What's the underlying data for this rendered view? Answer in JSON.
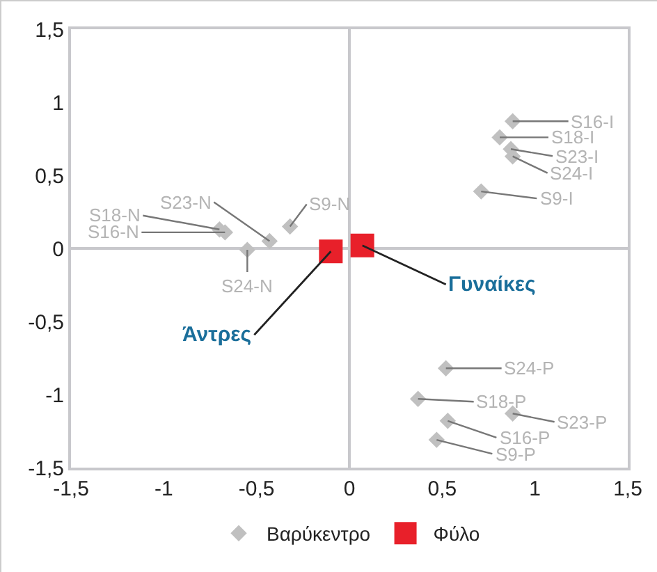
{
  "chart_data": {
    "type": "scatter",
    "xlim": [
      -1.5,
      1.5
    ],
    "xticks": [
      {
        "value": -1.5,
        "label": "-1,5"
      },
      -1,
      {
        "value": -0.5,
        "label": "-0,5"
      },
      0,
      {
        "value": 0.5,
        "label": "0,5"
      },
      1,
      {
        "value": 1.5,
        "label": "1,5"
      }
    ],
    "ylim": [
      -1.5,
      1.5
    ],
    "yticks": [
      {
        "value": -1.5,
        "label": "-1,5"
      },
      -1,
      {
        "value": -0.5,
        "label": "-0,5"
      },
      0,
      {
        "value": 0.5,
        "label": "0,5"
      },
      1,
      {
        "value": 1.5,
        "label": "1,5"
      }
    ],
    "legend": "bottom",
    "series": [
      {
        "name": "Βαρύκεντρο",
        "color": "#c0c0c0",
        "marker": "diamond",
        "x": [
          0.88,
          0.81,
          0.87,
          0.88,
          0.71,
          0.52,
          0.37,
          0.88,
          0.53,
          0.47,
          -0.7,
          -0.67,
          -0.43,
          -0.32,
          -0.55
        ],
        "values": [
          0.87,
          0.76,
          0.68,
          0.63,
          0.39,
          -0.82,
          -1.03,
          -1.13,
          -1.18,
          -1.31,
          0.13,
          0.11,
          0.05,
          0.15,
          -0.01
        ]
      },
      {
        "name": "Φύλο",
        "color": "#e8202a",
        "marker": "square",
        "x": [
          -0.1,
          0.07
        ],
        "values": [
          -0.02,
          0.02
        ]
      }
    ],
    "annotations": [
      {
        "text": "S16-I",
        "x": 0.88,
        "y": 0.87
      },
      {
        "text": "S18-I",
        "x": 0.81,
        "y": 0.76
      },
      {
        "text": "S23-I",
        "x": 0.87,
        "y": 0.68
      },
      {
        "text": "S24-I",
        "x": 0.88,
        "y": 0.63
      },
      {
        "text": "S9-I",
        "x": 0.71,
        "y": 0.39
      },
      {
        "text": "S24-P",
        "x": 0.52,
        "y": -0.82
      },
      {
        "text": "S18-P",
        "x": 0.37,
        "y": -1.03
      },
      {
        "text": "S23-P",
        "x": 0.88,
        "y": -1.13
      },
      {
        "text": "S16-P",
        "x": 0.53,
        "y": -1.18
      },
      {
        "text": "S9-P",
        "x": 0.47,
        "y": -1.31
      },
      {
        "text": "S18-N",
        "x": -0.7,
        "y": 0.13
      },
      {
        "text": "S16-N",
        "x": -0.67,
        "y": 0.11
      },
      {
        "text": "S23-N",
        "x": -0.43,
        "y": 0.05
      },
      {
        "text": "S9-N",
        "x": -0.32,
        "y": 0.15
      },
      {
        "text": "S24-N",
        "x": -0.55,
        "y": -0.01
      },
      {
        "text": "Άντρες",
        "x": -0.1,
        "y": -0.02
      },
      {
        "text": "Γυναίκες",
        "x": 0.07,
        "y": 0.02
      }
    ]
  }
}
